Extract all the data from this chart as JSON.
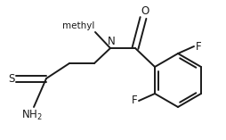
{
  "bg_color": "#ffffff",
  "line_color": "#1a1a1a",
  "line_width": 1.4,
  "font_size": 8.5,
  "figsize": [
    2.54,
    1.57
  ],
  "dpi": 100,
  "xlim": [
    0,
    254
  ],
  "ylim": [
    0,
    157
  ]
}
